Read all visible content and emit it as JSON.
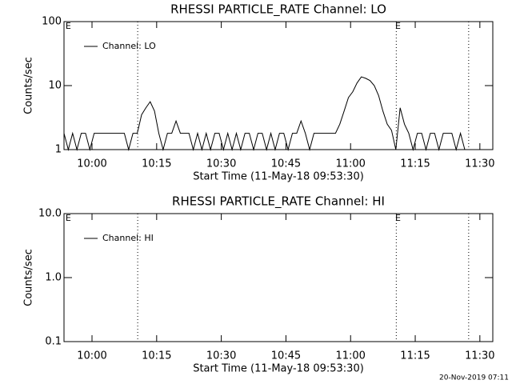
{
  "chart_data": [
    {
      "type": "line",
      "title": "RHESSI PARTICLE_RATE Channel: LO",
      "x_label": "Start Time (11-May-18 09:53:30)",
      "y_label": "Counts/sec",
      "x": [
        0,
        1,
        2,
        3,
        4,
        5,
        6,
        7,
        8,
        9,
        10,
        11,
        12,
        13,
        14,
        15,
        16,
        17,
        18,
        19,
        20,
        21,
        22,
        23,
        24,
        25,
        26,
        27,
        28,
        29,
        30,
        31,
        32,
        33,
        34,
        35,
        36,
        37,
        38,
        39,
        40,
        41,
        42,
        43,
        44,
        45,
        46,
        47,
        48,
        49,
        50,
        51,
        52,
        53,
        54,
        55,
        56,
        57,
        58,
        59,
        60,
        61,
        62,
        63,
        64,
        65,
        66,
        67,
        68,
        69,
        70,
        71,
        72,
        73,
        74,
        75,
        76,
        77,
        78,
        79,
        80,
        81,
        82,
        83,
        84,
        85,
        86,
        87,
        88,
        89,
        90,
        91,
        92,
        93
      ],
      "series": [
        {
          "name": "Channel: LO",
          "color": "#000000",
          "values": [
            1.8,
            1,
            1.8,
            1,
            1.8,
            1.8,
            1,
            1.8,
            1.8,
            1.8,
            1.8,
            1.8,
            1.8,
            1.8,
            1.8,
            1,
            1.8,
            1.8,
            3.5,
            4.5,
            5.6,
            4,
            1.8,
            1,
            1.8,
            1.8,
            2.8,
            1.8,
            1.8,
            1.8,
            1,
            1.8,
            1,
            1.8,
            1,
            1.8,
            1.8,
            1,
            1.8,
            1,
            1.8,
            1,
            1.8,
            1.8,
            1,
            1.8,
            1.8,
            1,
            1.8,
            1,
            1.8,
            1.8,
            1,
            1.8,
            1.8,
            2.8,
            1.8,
            1,
            1.8,
            1.8,
            1.8,
            1.8,
            1.8,
            1.8,
            2.5,
            4,
            6.5,
            8,
            11,
            13.7,
            13,
            12,
            10,
            7,
            4,
            2.5,
            2,
            1,
            4.5,
            2.5,
            1.8,
            1,
            1.8,
            1.8,
            1,
            1.8,
            1.8,
            1,
            1.8,
            1.8,
            1.8,
            1,
            1.8,
            1
          ]
        }
      ],
      "xlim": [
        0,
        99.5
      ],
      "xticks": [
        {
          "value": 6.5,
          "label": "10:00"
        },
        {
          "value": 21.5,
          "label": "10:15"
        },
        {
          "value": 36.5,
          "label": "10:30"
        },
        {
          "value": 51.5,
          "label": "10:45"
        },
        {
          "value": 66.5,
          "label": "11:00"
        },
        {
          "value": 81.5,
          "label": "11:15"
        },
        {
          "value": 96.5,
          "label": "11:30"
        }
      ],
      "ylim": [
        1,
        100
      ],
      "yticks": [
        1,
        10,
        100
      ],
      "log_y": true,
      "legend": "upper left",
      "vlines": [
        17.1,
        77.1,
        93.9
      ],
      "annotations": [
        {
          "text": "E",
          "x": 1
        },
        {
          "text": "E",
          "x": 77.5
        }
      ]
    },
    {
      "type": "line",
      "title": "RHESSI PARTICLE_RATE Channel: HI",
      "x_label": "Start Time (11-May-18 09:53:30)",
      "y_label": "Counts/sec",
      "x": [],
      "series": [
        {
          "name": "Channel: HI",
          "color": "#000000",
          "values": []
        }
      ],
      "xlim": [
        0,
        99.5
      ],
      "xticks": [
        {
          "value": 6.5,
          "label": "10:00"
        },
        {
          "value": 21.5,
          "label": "10:15"
        },
        {
          "value": 36.5,
          "label": "10:30"
        },
        {
          "value": 51.5,
          "label": "10:45"
        },
        {
          "value": 66.5,
          "label": "11:00"
        },
        {
          "value": 81.5,
          "label": "11:15"
        },
        {
          "value": 96.5,
          "label": "11:30"
        }
      ],
      "ylim": [
        0.1,
        10
      ],
      "yticks": [
        0.1,
        {
          "value": 1,
          "label": "1.0"
        },
        {
          "value": 10,
          "label": "10.0"
        }
      ],
      "log_y": true,
      "legend": "upper left",
      "vlines": [
        17.1,
        77.1,
        93.9
      ],
      "annotations": [
        {
          "text": "E",
          "x": 1
        },
        {
          "text": "E",
          "x": 77.5
        }
      ]
    }
  ],
  "footer": "20-Nov-2019 07:11"
}
